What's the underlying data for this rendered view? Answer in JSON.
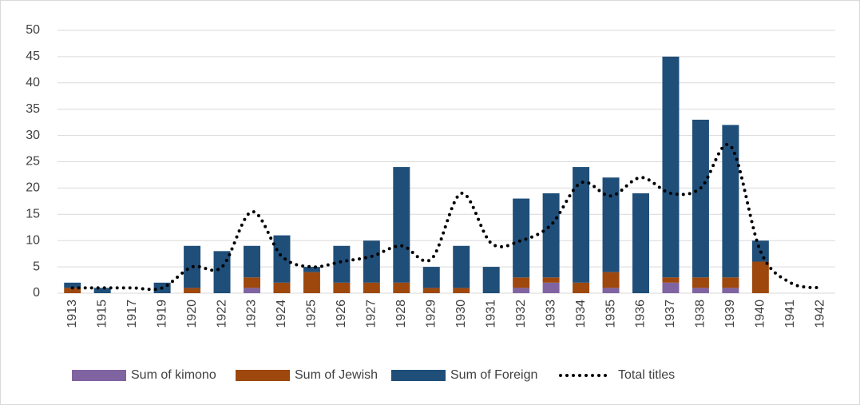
{
  "chart_data": {
    "type": "bar",
    "categories": [
      "1913",
      "1915",
      "1917",
      "1919",
      "1920",
      "1922",
      "1923",
      "1924",
      "1925",
      "1926",
      "1927",
      "1928",
      "1929",
      "1930",
      "1931",
      "1932",
      "1933",
      "1934",
      "1935",
      "1936",
      "1937",
      "1938",
      "1939",
      "1940",
      "1941",
      "1942"
    ],
    "series": [
      {
        "name": "Sum of kimono",
        "color": "#8064a2",
        "values": [
          0,
          0,
          0,
          0,
          0,
          0,
          1,
          0,
          0,
          0,
          0,
          0,
          0,
          0,
          0,
          1,
          2,
          0,
          1,
          0,
          2,
          1,
          1,
          0,
          0,
          0
        ]
      },
      {
        "name": "Sum of Jewish",
        "color": "#9e480e",
        "values": [
          1,
          0,
          0,
          0,
          1,
          0,
          2,
          2,
          4,
          2,
          2,
          2,
          1,
          1,
          0,
          2,
          1,
          2,
          3,
          0,
          1,
          2,
          2,
          6,
          0,
          0
        ]
      },
      {
        "name": "Sum of Foreign",
        "color": "#1f4e79",
        "values": [
          1,
          1,
          0,
          2,
          8,
          8,
          6,
          9,
          1,
          7,
          8,
          22,
          4,
          8,
          5,
          15,
          16,
          22,
          18,
          19,
          42,
          30,
          29,
          4,
          0,
          0
        ]
      },
      {
        "name": "Total titles",
        "type": "line",
        "color": "#000000",
        "values": [
          1,
          1,
          1,
          1,
          5,
          5,
          15.5,
          7,
          5,
          6,
          7,
          9,
          6.5,
          19,
          9.5,
          10,
          13,
          21,
          18.5,
          22,
          19,
          20,
          28,
          8,
          2,
          1
        ]
      }
    ],
    "stacked": true,
    "ylim": [
      0,
      50
    ],
    "yticks": [
      0,
      5,
      10,
      15,
      20,
      25,
      30,
      35,
      40,
      45,
      50
    ],
    "grid": true,
    "legend": "bottom"
  }
}
